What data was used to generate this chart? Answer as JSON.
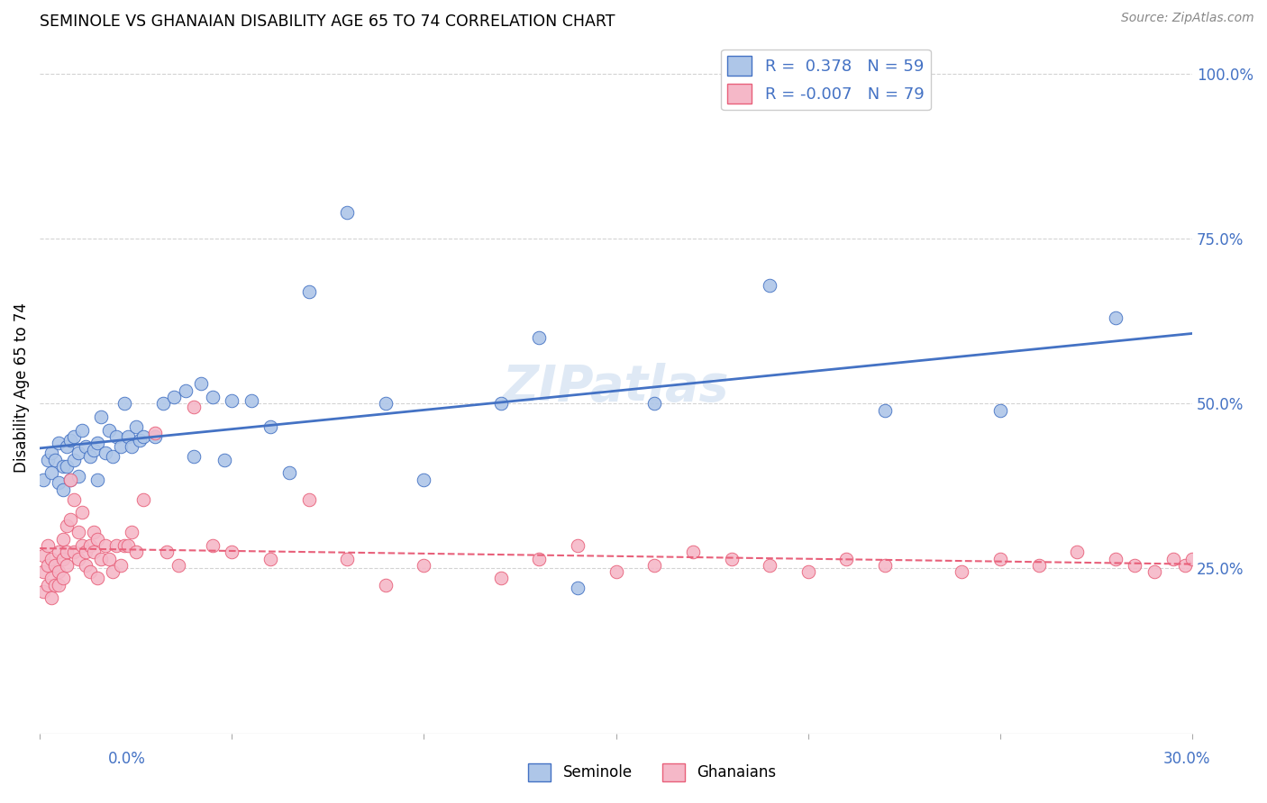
{
  "title": "SEMINOLE VS GHANAIAN DISABILITY AGE 65 TO 74 CORRELATION CHART",
  "source": "Source: ZipAtlas.com",
  "ylabel": "Disability Age 65 to 74",
  "xlim": [
    0.0,
    0.3
  ],
  "ylim": [
    0.0,
    1.05
  ],
  "ytick_vals": [
    0.25,
    0.5,
    0.75,
    1.0
  ],
  "ytick_labels": [
    "25.0%",
    "50.0%",
    "75.0%",
    "100.0%"
  ],
  "watermark": "ZIPatlas",
  "seminole_color": "#aec6e8",
  "ghanaian_color": "#f5b8c8",
  "line_seminole_color": "#4472c4",
  "line_ghanaian_color": "#e8607a",
  "seminole_R": 0.378,
  "seminole_N": 59,
  "ghanaian_R": -0.007,
  "ghanaian_N": 79,
  "seminole_points_x": [
    0.001,
    0.002,
    0.003,
    0.003,
    0.004,
    0.005,
    0.005,
    0.006,
    0.006,
    0.007,
    0.007,
    0.008,
    0.008,
    0.009,
    0.009,
    0.01,
    0.01,
    0.011,
    0.012,
    0.013,
    0.014,
    0.015,
    0.015,
    0.016,
    0.017,
    0.018,
    0.019,
    0.02,
    0.021,
    0.022,
    0.023,
    0.024,
    0.025,
    0.026,
    0.027,
    0.03,
    0.032,
    0.035,
    0.038,
    0.042,
    0.045,
    0.048,
    0.05,
    0.055,
    0.06,
    0.065,
    0.07,
    0.08,
    0.1,
    0.12,
    0.14,
    0.16,
    0.19,
    0.13,
    0.22,
    0.25,
    0.28,
    0.09,
    0.04
  ],
  "seminole_points_y": [
    0.385,
    0.415,
    0.425,
    0.395,
    0.415,
    0.38,
    0.44,
    0.405,
    0.37,
    0.435,
    0.405,
    0.445,
    0.385,
    0.45,
    0.415,
    0.425,
    0.39,
    0.46,
    0.435,
    0.42,
    0.43,
    0.44,
    0.385,
    0.48,
    0.425,
    0.46,
    0.42,
    0.45,
    0.435,
    0.5,
    0.45,
    0.435,
    0.465,
    0.445,
    0.45,
    0.45,
    0.5,
    0.51,
    0.52,
    0.53,
    0.51,
    0.415,
    0.505,
    0.505,
    0.465,
    0.395,
    0.67,
    0.79,
    0.385,
    0.5,
    0.22,
    0.5,
    0.68,
    0.6,
    0.49,
    0.49,
    0.63,
    0.5,
    0.42
  ],
  "ghanaian_points_x": [
    0.001,
    0.001,
    0.001,
    0.002,
    0.002,
    0.002,
    0.003,
    0.003,
    0.003,
    0.004,
    0.004,
    0.005,
    0.005,
    0.005,
    0.006,
    0.006,
    0.006,
    0.007,
    0.007,
    0.007,
    0.008,
    0.008,
    0.009,
    0.009,
    0.01,
    0.01,
    0.011,
    0.011,
    0.012,
    0.012,
    0.013,
    0.013,
    0.014,
    0.014,
    0.015,
    0.015,
    0.016,
    0.017,
    0.018,
    0.019,
    0.02,
    0.021,
    0.022,
    0.023,
    0.024,
    0.025,
    0.027,
    0.03,
    0.033,
    0.036,
    0.04,
    0.045,
    0.05,
    0.06,
    0.07,
    0.08,
    0.09,
    0.1,
    0.12,
    0.13,
    0.14,
    0.15,
    0.16,
    0.17,
    0.18,
    0.19,
    0.2,
    0.21,
    0.22,
    0.24,
    0.25,
    0.26,
    0.27,
    0.28,
    0.285,
    0.29,
    0.295,
    0.298,
    0.3
  ],
  "ghanaian_points_y": [
    0.27,
    0.245,
    0.215,
    0.255,
    0.225,
    0.285,
    0.265,
    0.235,
    0.205,
    0.255,
    0.225,
    0.245,
    0.275,
    0.225,
    0.265,
    0.295,
    0.235,
    0.275,
    0.255,
    0.315,
    0.385,
    0.325,
    0.275,
    0.355,
    0.305,
    0.265,
    0.285,
    0.335,
    0.255,
    0.275,
    0.285,
    0.245,
    0.305,
    0.275,
    0.295,
    0.235,
    0.265,
    0.285,
    0.265,
    0.245,
    0.285,
    0.255,
    0.285,
    0.285,
    0.305,
    0.275,
    0.355,
    0.455,
    0.275,
    0.255,
    0.495,
    0.285,
    0.275,
    0.265,
    0.355,
    0.265,
    0.225,
    0.255,
    0.235,
    0.265,
    0.285,
    0.245,
    0.255,
    0.275,
    0.265,
    0.255,
    0.245,
    0.265,
    0.255,
    0.245,
    0.265,
    0.255,
    0.275,
    0.265,
    0.255,
    0.245,
    0.265,
    0.255,
    0.265
  ]
}
